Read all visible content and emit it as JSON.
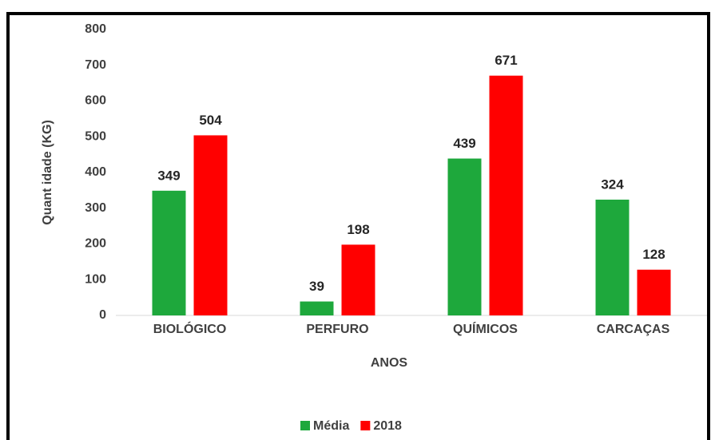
{
  "chart_data": {
    "type": "bar",
    "categories": [
      "BIOLÓGICO",
      "PERFURO",
      "QUÍMICOS",
      "CARCAÇAS"
    ],
    "series": [
      {
        "name": "Média",
        "color": "#1ea83c",
        "values": [
          349,
          39,
          439,
          324
        ]
      },
      {
        "name": "2018",
        "color": "#ff0000",
        "values": [
          504,
          198,
          671,
          128
        ]
      }
    ],
    "ylim": [
      0,
      800
    ],
    "yticks": [
      0,
      100,
      200,
      300,
      400,
      500,
      600,
      700,
      800
    ],
    "y_label": "Quant idade (KG)",
    "x_label": "ANOS",
    "grid": false,
    "legend": "bottom"
  }
}
